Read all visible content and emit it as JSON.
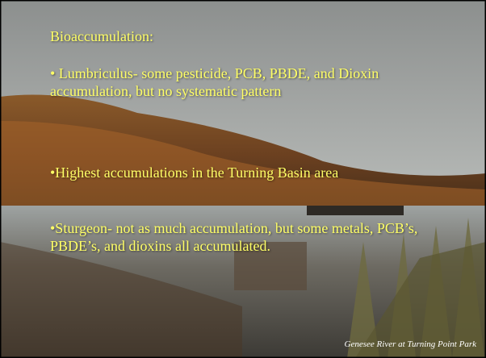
{
  "slide": {
    "title": "Bioaccumulation:",
    "bullets": [
      "• Lumbriculus- some pesticide, PCB, PBDE, and Dioxin accumulation, but no systematic pattern",
      "•Highest accumulations in the Turning Basin area",
      "•Sturgeon- not as much accumulation, but some metals, PCB’s, PBDE’s, and dioxins all accumulated."
    ],
    "caption": "Genesee River at Turning Point Park"
  }
}
